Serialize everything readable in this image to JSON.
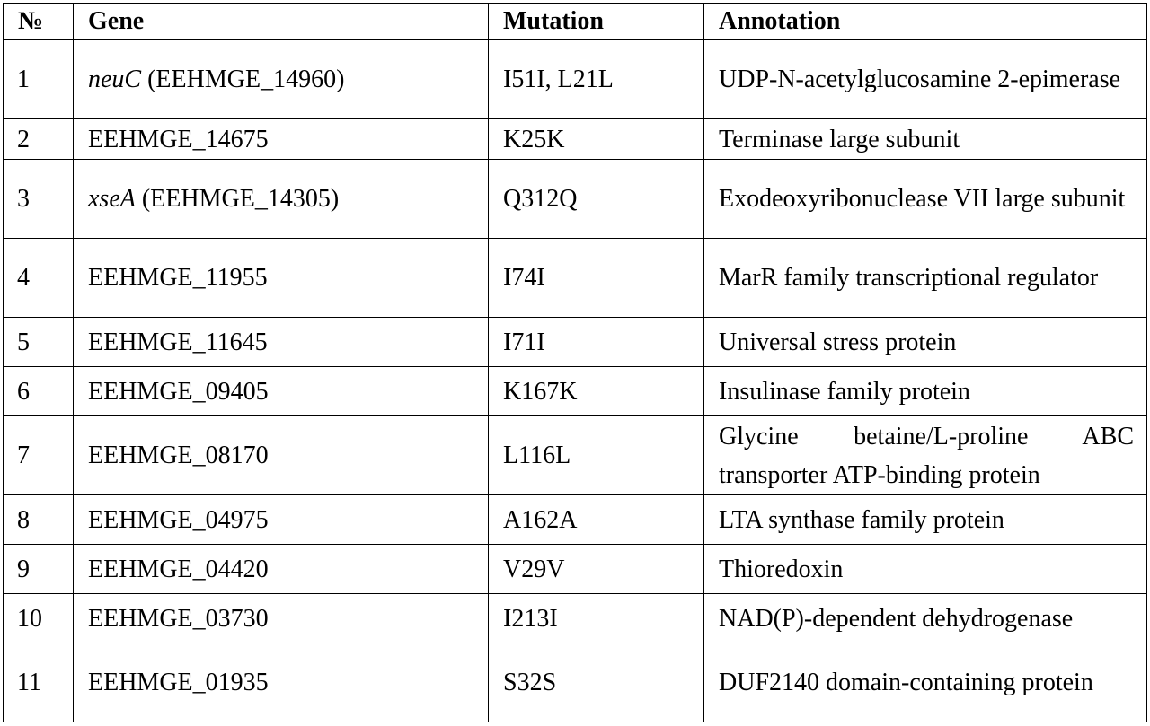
{
  "table": {
    "headers": [
      "№",
      "Gene",
      "Mutation",
      "Annotation"
    ],
    "rows": [
      {
        "no": "1",
        "gene_italic": "neuC",
        "gene_rest": " (EEHMGE_14960)",
        "mutation": "I51I, L21L",
        "annotation": "UDP-N-acetylglucosamine 2-epimerase"
      },
      {
        "no": "2",
        "gene_italic": "",
        "gene_rest": "EEHMGE_14675",
        "mutation": "K25K",
        "annotation": "Terminase large subunit"
      },
      {
        "no": "3",
        "gene_italic": "xseA",
        "gene_rest": " (EEHMGE_14305)",
        "mutation": "Q312Q",
        "annotation": "Exodeoxyribonuclease VII large subunit"
      },
      {
        "no": "4",
        "gene_italic": "",
        "gene_rest": "EEHMGE_11955",
        "mutation": "I74I",
        "annotation": "MarR family transcriptional regulator"
      },
      {
        "no": "5",
        "gene_italic": "",
        "gene_rest": "EEHMGE_11645",
        "mutation": "I71I",
        "annotation": "Universal stress protein"
      },
      {
        "no": "6",
        "gene_italic": "",
        "gene_rest": "EEHMGE_09405",
        "mutation": "K167K",
        "annotation": "Insulinase family protein"
      },
      {
        "no": "7",
        "gene_italic": "",
        "gene_rest": "EEHMGE_08170",
        "mutation": "L116L",
        "annotation": "Glycine betaine/L-proline ABC transporter ATP-binding protein"
      },
      {
        "no": "8",
        "gene_italic": "",
        "gene_rest": "EEHMGE_04975",
        "mutation": "A162A",
        "annotation": "LTA synthase family protein"
      },
      {
        "no": "9",
        "gene_italic": "",
        "gene_rest": "EEHMGE_04420",
        "mutation": "V29V",
        "annotation": "Thioredoxin"
      },
      {
        "no": "10",
        "gene_italic": "",
        "gene_rest": "EEHMGE_03730",
        "mutation": "I213I",
        "annotation": "NAD(P)-dependent dehydrogenase"
      },
      {
        "no": "11",
        "gene_italic": "",
        "gene_rest": "EEHMGE_01935",
        "mutation": "S32S",
        "annotation": "DUF2140 domain-containing protein"
      }
    ]
  }
}
